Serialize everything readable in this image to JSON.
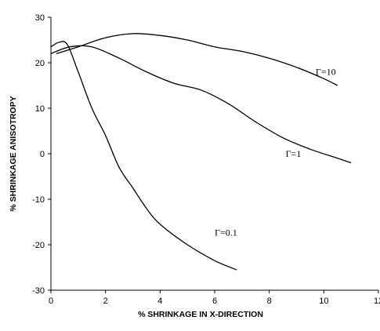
{
  "chart_data": {
    "type": "line",
    "title": "",
    "xlabel": "% SHRINKAGE IN X-DIRECTION",
    "ylabel": "% SHRINKAGE ANISOTROPY",
    "xlim": [
      0,
      12
    ],
    "ylim": [
      -30,
      30
    ],
    "xticks": [
      0,
      2,
      4,
      6,
      8,
      10,
      12
    ],
    "yticks": [
      -30,
      -20,
      -10,
      0,
      10,
      20,
      30
    ],
    "grid": false,
    "legend": "none",
    "series": [
      {
        "name": "Γ=10",
        "label_at": [
          9.7,
          17.3
        ],
        "points": [
          [
            0.2,
            22
          ],
          [
            1,
            23.5
          ],
          [
            2,
            25.5
          ],
          [
            3,
            26.4
          ],
          [
            4,
            26
          ],
          [
            5,
            25
          ],
          [
            6,
            23.5
          ],
          [
            7,
            22.5
          ],
          [
            8,
            21
          ],
          [
            9,
            19
          ],
          [
            10,
            16.5
          ],
          [
            10.5,
            15
          ]
        ]
      },
      {
        "name": "Γ=1",
        "label_at": [
          8.6,
          -0.7
        ],
        "points": [
          [
            0,
            22
          ],
          [
            0.7,
            23.5
          ],
          [
            1.5,
            23.5
          ],
          [
            2.5,
            21
          ],
          [
            3.5,
            18
          ],
          [
            4.5,
            15.5
          ],
          [
            5.5,
            14
          ],
          [
            6.5,
            11
          ],
          [
            7.5,
            7
          ],
          [
            8.5,
            3.5
          ],
          [
            9.5,
            1
          ],
          [
            10.5,
            -1
          ],
          [
            11,
            -2
          ]
        ]
      },
      {
        "name": "Γ=0.1",
        "label_at": [
          6.0,
          -18.0
        ],
        "points": [
          [
            0,
            23.5
          ],
          [
            0.3,
            24.5
          ],
          [
            0.6,
            24
          ],
          [
            1,
            18
          ],
          [
            1.5,
            10
          ],
          [
            2,
            4
          ],
          [
            2.5,
            -3
          ],
          [
            3,
            -7.5
          ],
          [
            3.5,
            -12
          ],
          [
            4,
            -15.5
          ],
          [
            5,
            -20
          ],
          [
            6,
            -23.5
          ],
          [
            6.8,
            -25.5
          ]
        ]
      }
    ]
  }
}
